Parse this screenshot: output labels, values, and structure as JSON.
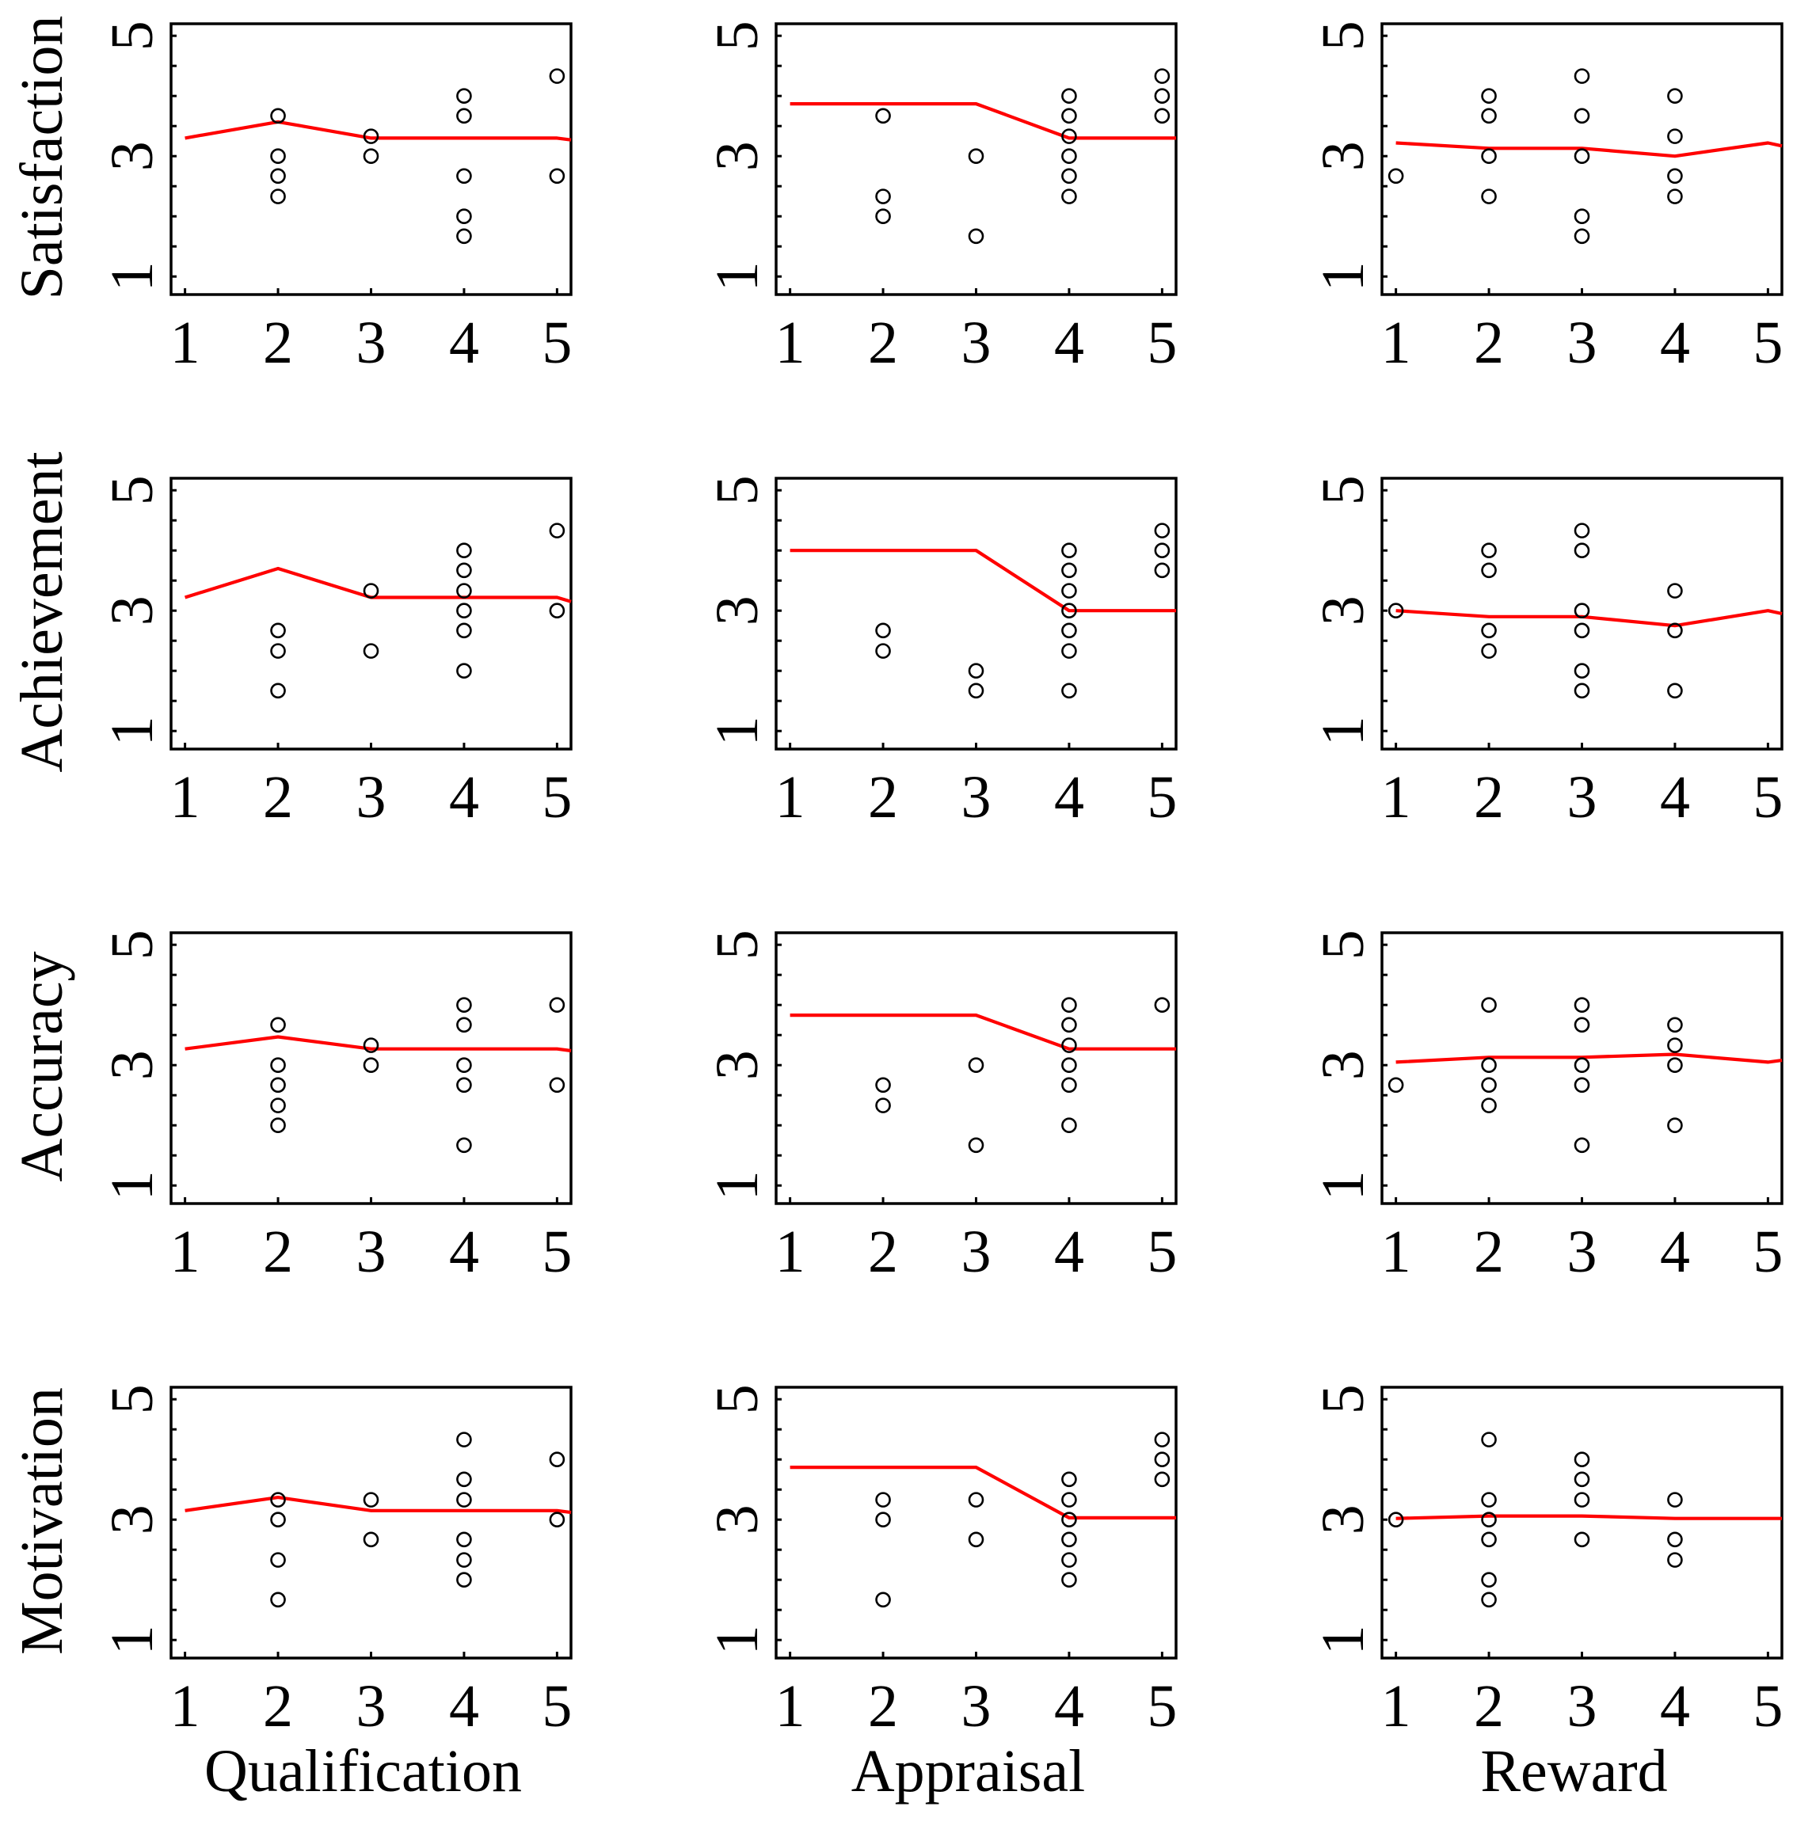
{
  "chart_data": {
    "type": "scatter",
    "layout": "grid-4x3",
    "row_labels": [
      "Satisfaction",
      "Achievement",
      "Accuracy",
      "Motivation"
    ],
    "col_labels": [
      "Qualification",
      "Appraisal",
      "Reward"
    ],
    "xlim": [
      0.85,
      5.15
    ],
    "ylim": [
      0.7,
      5.2
    ],
    "xticks": [
      "1",
      "2",
      "3",
      "4",
      "5"
    ],
    "yticks": [
      "1",
      "3",
      "5"
    ],
    "grid": false,
    "colors": {
      "points": "#000000",
      "fit_line": "#ff0000"
    },
    "panels": [
      {
        "row": "Satisfaction",
        "col": "Qualification",
        "points": [
          [
            2,
            3.67
          ],
          [
            2,
            3.0
          ],
          [
            2,
            2.67
          ],
          [
            2,
            2.33
          ],
          [
            3,
            3.33
          ],
          [
            3,
            3.0
          ],
          [
            4,
            4.0
          ],
          [
            4,
            3.67
          ],
          [
            4,
            2.67
          ],
          [
            4,
            2.0
          ],
          [
            4,
            1.67
          ],
          [
            5,
            4.33
          ],
          [
            5,
            2.67
          ]
        ],
        "fit": [
          [
            1,
            3.3
          ],
          [
            2,
            3.57
          ],
          [
            3,
            3.3
          ],
          [
            4,
            3.3
          ],
          [
            5,
            3.3
          ],
          [
            5.15,
            3.27
          ]
        ]
      },
      {
        "row": "Satisfaction",
        "col": "Appraisal",
        "points": [
          [
            2,
            3.67
          ],
          [
            2,
            2.33
          ],
          [
            2,
            2.0
          ],
          [
            3,
            3.0
          ],
          [
            3,
            1.67
          ],
          [
            4,
            4.0
          ],
          [
            4,
            3.67
          ],
          [
            4,
            3.33
          ],
          [
            4,
            3.0
          ],
          [
            4,
            2.67
          ],
          [
            4,
            2.33
          ],
          [
            5,
            4.33
          ],
          [
            5,
            4.0
          ],
          [
            5,
            3.67
          ]
        ],
        "fit": [
          [
            1,
            3.87
          ],
          [
            2,
            3.87
          ],
          [
            3,
            3.87
          ],
          [
            4,
            3.3
          ],
          [
            5,
            3.3
          ],
          [
            5.15,
            3.3
          ]
        ]
      },
      {
        "row": "Satisfaction",
        "col": "Reward",
        "points": [
          [
            1,
            2.67
          ],
          [
            2,
            4.0
          ],
          [
            2,
            3.67
          ],
          [
            2,
            3.0
          ],
          [
            2,
            2.33
          ],
          [
            3,
            4.33
          ],
          [
            3,
            3.67
          ],
          [
            3,
            3.0
          ],
          [
            3,
            2.0
          ],
          [
            3,
            1.67
          ],
          [
            4,
            4.0
          ],
          [
            4,
            3.33
          ],
          [
            4,
            2.67
          ],
          [
            4,
            2.33
          ]
        ],
        "fit": [
          [
            1,
            3.22
          ],
          [
            2,
            3.13
          ],
          [
            3,
            3.13
          ],
          [
            4,
            3.0
          ],
          [
            5,
            3.22
          ],
          [
            5.15,
            3.17
          ]
        ]
      },
      {
        "row": "Achievement",
        "col": "Qualification",
        "points": [
          [
            2,
            2.67
          ],
          [
            2,
            2.33
          ],
          [
            2,
            1.67
          ],
          [
            3,
            3.33
          ],
          [
            3,
            2.33
          ],
          [
            4,
            4.0
          ],
          [
            4,
            3.67
          ],
          [
            4,
            3.33
          ],
          [
            4,
            3.0
          ],
          [
            4,
            2.67
          ],
          [
            4,
            2.0
          ],
          [
            5,
            4.33
          ],
          [
            5,
            3.0
          ]
        ],
        "fit": [
          [
            1,
            3.22
          ],
          [
            2,
            3.7
          ],
          [
            3,
            3.22
          ],
          [
            4,
            3.22
          ],
          [
            5,
            3.22
          ],
          [
            5.15,
            3.15
          ]
        ]
      },
      {
        "row": "Achievement",
        "col": "Appraisal",
        "points": [
          [
            2,
            2.67
          ],
          [
            2,
            2.33
          ],
          [
            3,
            2.0
          ],
          [
            3,
            1.67
          ],
          [
            4,
            4.0
          ],
          [
            4,
            3.67
          ],
          [
            4,
            3.33
          ],
          [
            4,
            3.0
          ],
          [
            4,
            2.67
          ],
          [
            4,
            2.33
          ],
          [
            4,
            1.67
          ],
          [
            5,
            4.33
          ],
          [
            5,
            4.0
          ],
          [
            5,
            3.67
          ]
        ],
        "fit": [
          [
            1,
            4.0
          ],
          [
            2,
            4.0
          ],
          [
            3,
            4.0
          ],
          [
            4,
            3.0
          ],
          [
            5,
            3.0
          ],
          [
            5.15,
            3.0
          ]
        ]
      },
      {
        "row": "Achievement",
        "col": "Reward",
        "points": [
          [
            1,
            3.0
          ],
          [
            2,
            4.0
          ],
          [
            2,
            3.67
          ],
          [
            2,
            2.67
          ],
          [
            2,
            2.33
          ],
          [
            3,
            4.33
          ],
          [
            3,
            4.0
          ],
          [
            3,
            3.0
          ],
          [
            3,
            2.67
          ],
          [
            3,
            2.0
          ],
          [
            3,
            1.67
          ],
          [
            4,
            3.33
          ],
          [
            4,
            2.67
          ],
          [
            4,
            1.67
          ]
        ],
        "fit": [
          [
            1,
            3.0
          ],
          [
            2,
            2.9
          ],
          [
            3,
            2.9
          ],
          [
            4,
            2.75
          ],
          [
            5,
            3.0
          ],
          [
            5.15,
            2.95
          ]
        ]
      },
      {
        "row": "Accuracy",
        "col": "Qualification",
        "points": [
          [
            2,
            3.67
          ],
          [
            2,
            3.0
          ],
          [
            2,
            2.67
          ],
          [
            2,
            2.33
          ],
          [
            2,
            2.0
          ],
          [
            3,
            3.33
          ],
          [
            3,
            3.0
          ],
          [
            4,
            4.0
          ],
          [
            4,
            3.67
          ],
          [
            4,
            3.0
          ],
          [
            4,
            2.67
          ],
          [
            4,
            1.67
          ],
          [
            5,
            4.0
          ],
          [
            5,
            2.67
          ]
        ],
        "fit": [
          [
            1,
            3.27
          ],
          [
            2,
            3.47
          ],
          [
            3,
            3.27
          ],
          [
            4,
            3.27
          ],
          [
            5,
            3.27
          ],
          [
            5.15,
            3.24
          ]
        ]
      },
      {
        "row": "Accuracy",
        "col": "Appraisal",
        "points": [
          [
            2,
            2.67
          ],
          [
            2,
            2.33
          ],
          [
            3,
            3.0
          ],
          [
            3,
            1.67
          ],
          [
            4,
            4.0
          ],
          [
            4,
            3.67
          ],
          [
            4,
            3.33
          ],
          [
            4,
            3.0
          ],
          [
            4,
            2.67
          ],
          [
            4,
            2.0
          ],
          [
            5,
            4.0
          ]
        ],
        "fit": [
          [
            1,
            3.83
          ],
          [
            2,
            3.83
          ],
          [
            3,
            3.83
          ],
          [
            4,
            3.27
          ],
          [
            5,
            3.27
          ],
          [
            5.15,
            3.27
          ]
        ]
      },
      {
        "row": "Accuracy",
        "col": "Reward",
        "points": [
          [
            1,
            2.67
          ],
          [
            2,
            4.0
          ],
          [
            2,
            3.0
          ],
          [
            2,
            2.67
          ],
          [
            2,
            2.33
          ],
          [
            3,
            4.0
          ],
          [
            3,
            3.67
          ],
          [
            3,
            3.0
          ],
          [
            3,
            2.67
          ],
          [
            3,
            1.67
          ],
          [
            4,
            3.67
          ],
          [
            4,
            3.33
          ],
          [
            4,
            3.0
          ],
          [
            4,
            2.0
          ]
        ],
        "fit": [
          [
            1,
            3.05
          ],
          [
            2,
            3.13
          ],
          [
            3,
            3.13
          ],
          [
            4,
            3.18
          ],
          [
            5,
            3.05
          ],
          [
            5.15,
            3.08
          ]
        ]
      },
      {
        "row": "Motivation",
        "col": "Qualification",
        "points": [
          [
            2,
            3.33
          ],
          [
            2,
            3.0
          ],
          [
            2,
            2.33
          ],
          [
            2,
            1.67
          ],
          [
            3,
            3.33
          ],
          [
            3,
            2.67
          ],
          [
            4,
            4.33
          ],
          [
            4,
            3.67
          ],
          [
            4,
            3.33
          ],
          [
            4,
            2.67
          ],
          [
            4,
            2.33
          ],
          [
            4,
            2.0
          ],
          [
            5,
            4.0
          ],
          [
            5,
            3.0
          ]
        ],
        "fit": [
          [
            1,
            3.15
          ],
          [
            2,
            3.37
          ],
          [
            3,
            3.15
          ],
          [
            4,
            3.15
          ],
          [
            5,
            3.15
          ],
          [
            5.15,
            3.12
          ]
        ]
      },
      {
        "row": "Motivation",
        "col": "Appraisal",
        "points": [
          [
            2,
            3.33
          ],
          [
            2,
            3.0
          ],
          [
            2,
            1.67
          ],
          [
            3,
            3.33
          ],
          [
            3,
            2.67
          ],
          [
            4,
            3.67
          ],
          [
            4,
            3.33
          ],
          [
            4,
            3.0
          ],
          [
            4,
            2.67
          ],
          [
            4,
            2.33
          ],
          [
            4,
            2.0
          ],
          [
            5,
            4.33
          ],
          [
            5,
            4.0
          ],
          [
            5,
            3.67
          ]
        ],
        "fit": [
          [
            1,
            3.87
          ],
          [
            2,
            3.87
          ],
          [
            3,
            3.87
          ],
          [
            4,
            3.03
          ],
          [
            5,
            3.03
          ],
          [
            5.15,
            3.03
          ]
        ]
      },
      {
        "row": "Motivation",
        "col": "Reward",
        "points": [
          [
            1,
            3.0
          ],
          [
            2,
            4.33
          ],
          [
            2,
            3.33
          ],
          [
            2,
            3.0
          ],
          [
            2,
            2.67
          ],
          [
            2,
            2.0
          ],
          [
            2,
            1.67
          ],
          [
            3,
            4.0
          ],
          [
            3,
            3.67
          ],
          [
            3,
            3.33
          ],
          [
            3,
            2.67
          ],
          [
            4,
            3.33
          ],
          [
            4,
            2.67
          ],
          [
            4,
            2.33
          ]
        ],
        "fit": [
          [
            1,
            3.02
          ],
          [
            2,
            3.06
          ],
          [
            3,
            3.06
          ],
          [
            4,
            3.02
          ],
          [
            5,
            3.02
          ],
          [
            5.15,
            3.02
          ]
        ]
      }
    ]
  }
}
